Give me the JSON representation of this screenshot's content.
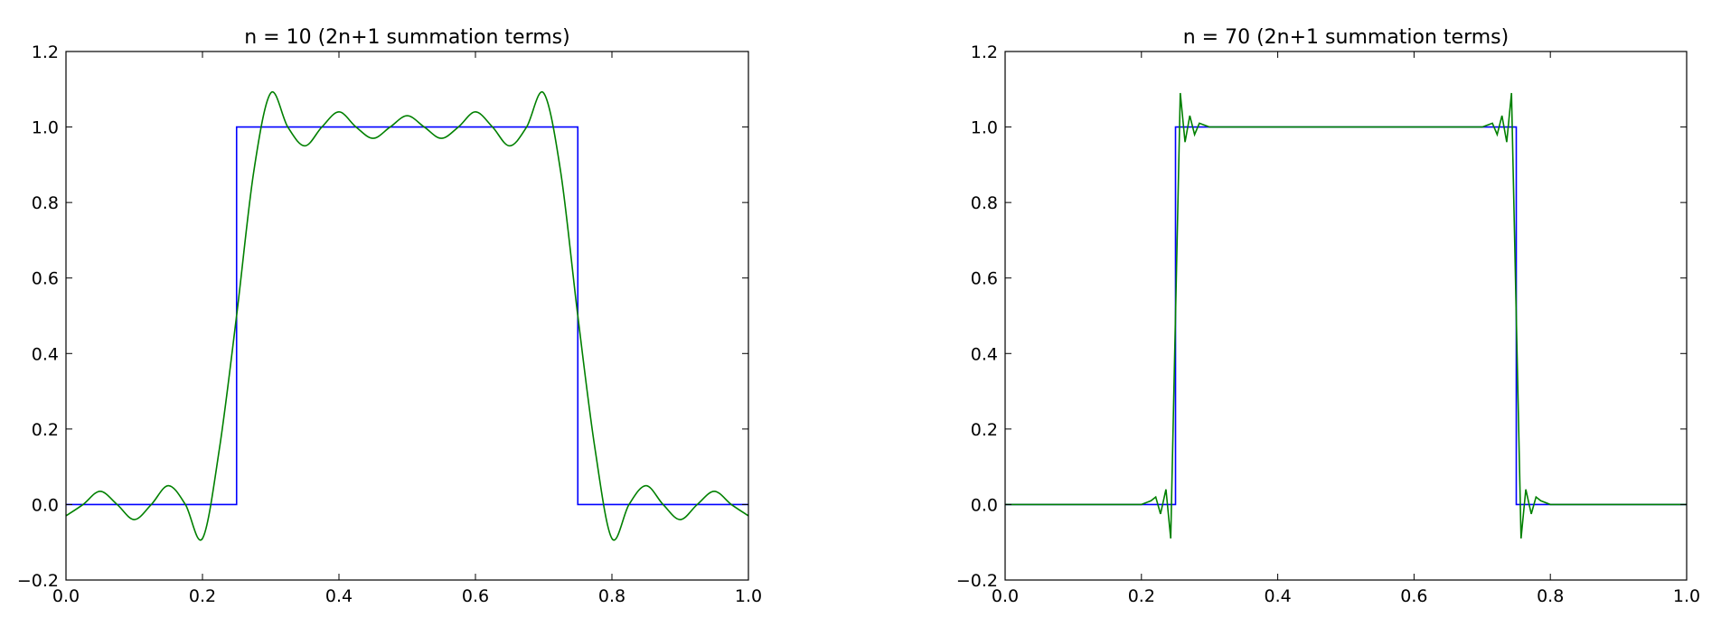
{
  "chart_data": [
    {
      "type": "line",
      "title": "n = 10 (2n+1 summation terms)",
      "xlim": [
        0,
        1
      ],
      "ylim": [
        -0.2,
        1.2
      ],
      "xticks": [
        {
          "value": 0,
          "label": "0.0"
        },
        0.2,
        0.4,
        0.6,
        0.8,
        {
          "value": 1,
          "label": "1.0"
        }
      ],
      "yticks": [
        {
          "value": -0.2,
          "label": "−0.2"
        },
        {
          "value": 0,
          "label": "0.0"
        },
        0.2,
        0.4,
        0.6,
        0.8,
        {
          "value": 1,
          "label": "1.0"
        },
        1.2
      ],
      "series": [
        {
          "color": "#0000ff",
          "smooth": false,
          "x": [
            0,
            0.25,
            0.25,
            0.75,
            0.75,
            1
          ],
          "values": [
            0,
            0,
            1,
            1,
            0,
            0
          ]
        },
        {
          "color": "#008000",
          "smooth": true,
          "x": [
            0,
            0.025,
            0.05,
            0.075,
            0.1,
            0.125,
            0.15,
            0.175,
            0.2,
            0.225,
            0.25,
            0.275,
            0.3,
            0.325,
            0.35,
            0.375,
            0.4,
            0.425,
            0.45,
            0.475,
            0.5,
            0.525,
            0.55,
            0.575,
            0.6,
            0.625,
            0.65,
            0.675,
            0.7,
            0.725,
            0.75,
            0.775,
            0.8,
            0.825,
            0.85,
            0.875,
            0.9,
            0.925,
            0.95,
            0.975,
            1
          ],
          "values": [
            -0.03,
            0,
            0.035,
            0,
            -0.04,
            0,
            0.05,
            0,
            -0.09,
            0.15,
            0.5,
            0.88,
            1.09,
            1.0,
            0.95,
            1.0,
            1.04,
            1.0,
            0.97,
            1.0,
            1.03,
            1.0,
            0.97,
            1.0,
            1.04,
            1.0,
            0.95,
            1.0,
            1.09,
            0.88,
            0.5,
            0.15,
            -0.09,
            0,
            0.05,
            0,
            -0.04,
            0,
            0.035,
            0,
            -0.03
          ]
        }
      ]
    },
    {
      "type": "line",
      "title": "n = 70 (2n+1 summation terms)",
      "xlim": [
        0,
        1
      ],
      "ylim": [
        -0.2,
        1.2
      ],
      "xticks": [
        {
          "value": 0,
          "label": "0.0"
        },
        0.2,
        0.4,
        0.6,
        0.8,
        {
          "value": 1,
          "label": "1.0"
        }
      ],
      "yticks": [
        {
          "value": -0.2,
          "label": "−0.2"
        },
        {
          "value": 0,
          "label": "0.0"
        },
        0.2,
        0.4,
        0.6,
        0.8,
        {
          "value": 1,
          "label": "1.0"
        },
        1.2
      ],
      "series": [
        {
          "color": "#0000ff",
          "smooth": false,
          "x": [
            0,
            0.25,
            0.25,
            0.75,
            0.75,
            1
          ],
          "values": [
            0,
            0,
            1,
            1,
            0,
            0
          ]
        },
        {
          "color": "#008000",
          "smooth": false,
          "x": [
            0,
            0.2,
            0.214,
            0.221,
            0.228,
            0.236,
            0.243,
            0.25,
            0.257,
            0.264,
            0.271,
            0.278,
            0.285,
            0.3,
            0.7,
            0.715,
            0.722,
            0.729,
            0.736,
            0.743,
            0.75,
            0.757,
            0.764,
            0.772,
            0.779,
            0.786,
            0.8,
            1
          ],
          "values": [
            0,
            0,
            0.01,
            0.02,
            -0.025,
            0.04,
            -0.09,
            0.5,
            1.09,
            0.96,
            1.03,
            0.98,
            1.01,
            1,
            1,
            1.01,
            0.98,
            1.03,
            0.96,
            1.09,
            0.5,
            -0.09,
            0.04,
            -0.025,
            0.02,
            0.01,
            0,
            0
          ]
        }
      ]
    }
  ]
}
